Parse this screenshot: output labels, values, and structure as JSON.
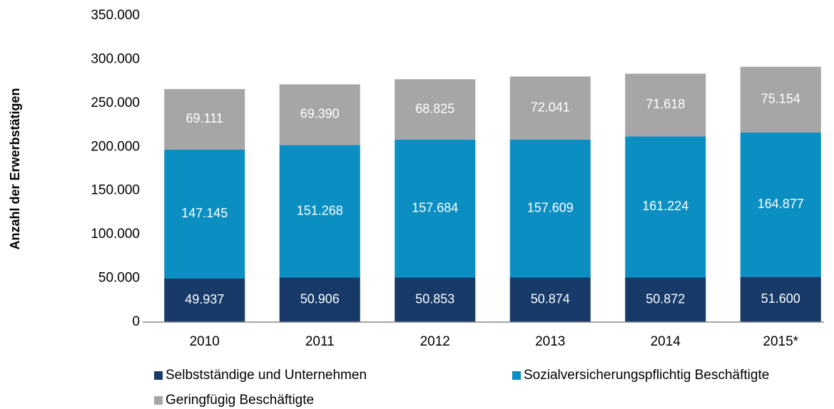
{
  "chart_data": {
    "type": "stacked_bar",
    "y_label": "Anzahl der Erwerbstätigen",
    "categories": [
      "2010",
      "2011",
      "2012",
      "2013",
      "2014",
      "2015*"
    ],
    "series": [
      {
        "name": "Selbstständige und Unternehmen",
        "color": "#173a68",
        "values": [
          49937,
          50906,
          50853,
          50874,
          50872,
          51600
        ],
        "value_labels": [
          "49.937",
          "50.906",
          "50.853",
          "50.874",
          "50.872",
          "51.600"
        ]
      },
      {
        "name": "Sozialversicherungspflichtig Beschäftigte",
        "color": "#0b8fc3",
        "values": [
          147145,
          151268,
          157684,
          157609,
          161224,
          164877
        ],
        "value_labels": [
          "147.145",
          "151.268",
          "157.684",
          "157.609",
          "161.224",
          "164.877"
        ]
      },
      {
        "name": "Geringfügig Beschäftigte",
        "color": "#a6a6a6",
        "values": [
          69111,
          69390,
          68825,
          72041,
          71618,
          75154
        ],
        "value_labels": [
          "69.111",
          "69.390",
          "68.825",
          "72.041",
          "71.618",
          "75.154"
        ]
      }
    ],
    "ylim": [
      0,
      350000
    ],
    "yticks": [
      0,
      {
        "value": 50000,
        "label": "50.000"
      },
      {
        "value": 100000,
        "label": "100.000"
      },
      {
        "value": 150000,
        "label": "150.000"
      },
      {
        "value": 200000,
        "label": "200.000"
      },
      {
        "value": 250000,
        "label": "250.000"
      },
      {
        "value": 300000,
        "label": "300.000"
      },
      {
        "value": 350000,
        "label": "350.000"
      }
    ],
    "grid": false
  }
}
